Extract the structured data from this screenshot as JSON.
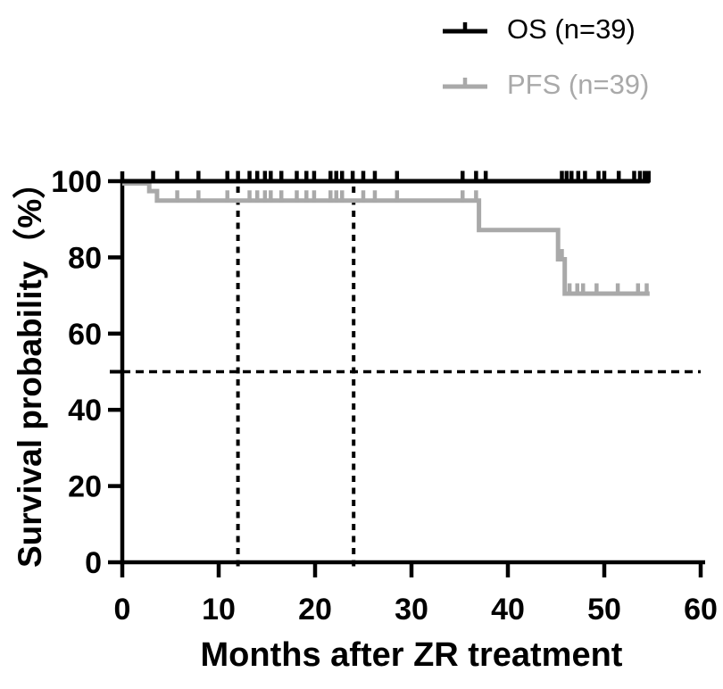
{
  "chart_data": {
    "type": "line",
    "variant": "kaplan_meier_step",
    "title": "",
    "xlabel": "Months after ZR treatment",
    "ylabel": "Survival probability（%）",
    "xlim": [
      0,
      60
    ],
    "ylim": [
      0,
      100
    ],
    "xticks": [
      0,
      10,
      20,
      30,
      40,
      50,
      60
    ],
    "yticks": [
      0,
      20,
      40,
      60,
      80,
      100
    ],
    "grid": false,
    "legend_position": "top-right",
    "axis_color": "#000000",
    "background_color": "#ffffff",
    "reference_lines": {
      "style": "dashed",
      "color": "#000000",
      "horizontal_survival_pct": 50,
      "vertical_months": [
        12,
        24
      ]
    },
    "follow_up_end_months": 54.7,
    "series": [
      {
        "name": "OS (n=39)",
        "color": "#000000",
        "steps_time_survival": [
          [
            0,
            100
          ]
        ],
        "censor_marks_months": [
          3.2,
          5.7,
          7.9,
          10.9,
          12.0,
          13.2,
          14.0,
          14.8,
          15.4,
          16.5,
          18.1,
          19.1,
          19.9,
          21.6,
          22.2,
          22.8,
          23.9,
          25.0,
          26.2,
          28.5,
          35.3,
          36.7,
          37.7,
          45.6,
          46.1,
          46.6,
          47.3,
          48.0,
          49.4,
          50.0,
          51.5,
          53.1,
          53.7,
          54.2,
          54.6
        ]
      },
      {
        "name": "PFS (n=39)",
        "color": "#a9a9a9",
        "steps_time_survival": [
          [
            0,
            100
          ],
          [
            2.8,
            97.4
          ],
          [
            3.6,
            94.9
          ],
          [
            37.0,
            87.2
          ],
          [
            45.2,
            79.5
          ],
          [
            45.9,
            70.5
          ]
        ],
        "censor_marks_months": [
          5.7,
          7.9,
          10.9,
          13.2,
          14.0,
          14.8,
          15.4,
          16.5,
          18.1,
          19.1,
          19.9,
          21.6,
          22.2,
          22.8,
          25.0,
          26.2,
          28.5,
          35.3,
          36.7,
          45.6,
          46.4,
          47.2,
          47.8,
          49.2,
          51.4,
          53.5,
          54.4
        ]
      }
    ]
  }
}
